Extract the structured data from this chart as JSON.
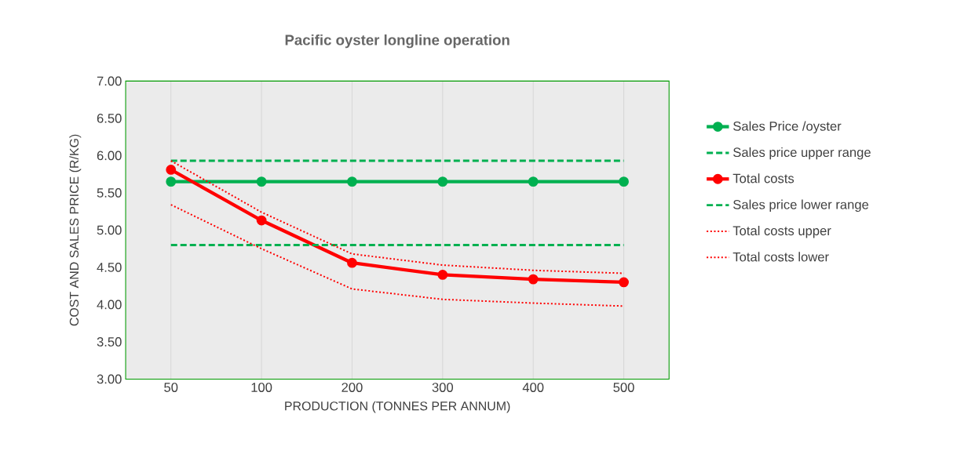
{
  "chart_data": {
    "type": "line",
    "title": "Pacific oyster longline operation",
    "xlabel": "PRODUCTION (TONNES PER ANNUM)",
    "ylabel": "COST AND SALES PRICE (R/KG)",
    "categories": [
      "50",
      "100",
      "200",
      "300",
      "400",
      "500"
    ],
    "series": [
      {
        "name": "Sales Price /oyster",
        "color": "#00b050",
        "line_style": "solid",
        "marker": "circle",
        "values": [
          5.65,
          5.65,
          5.65,
          5.65,
          5.65,
          5.65
        ]
      },
      {
        "name": "Sales price upper range",
        "color": "#00b050",
        "line_style": "dashed",
        "marker": "none",
        "values": [
          5.93,
          5.93,
          5.93,
          5.93,
          5.93,
          5.93
        ]
      },
      {
        "name": "Total costs",
        "color": "#ff0000",
        "line_style": "solid",
        "marker": "circle",
        "values": [
          5.81,
          5.13,
          4.56,
          4.4,
          4.34,
          4.3
        ]
      },
      {
        "name": "Sales price lower range",
        "color": "#00b050",
        "line_style": "dashed",
        "marker": "none",
        "values": [
          4.8,
          4.8,
          4.8,
          4.8,
          4.8,
          4.8
        ]
      },
      {
        "name": "Total costs upper",
        "color": "#ff0000",
        "line_style": "dotted",
        "marker": "none",
        "values": [
          5.93,
          5.24,
          4.68,
          4.53,
          4.46,
          4.42
        ]
      },
      {
        "name": "Total costs lower",
        "color": "#ff0000",
        "line_style": "dotted",
        "marker": "none",
        "values": [
          5.34,
          4.75,
          4.21,
          4.07,
          4.02,
          3.98
        ]
      }
    ],
    "ylim": [
      3.0,
      7.0
    ],
    "yticks": [
      {
        "value": 3,
        "label": "3.00"
      },
      {
        "value": 3.5,
        "label": "3.50"
      },
      {
        "value": 4,
        "label": "4.00"
      },
      {
        "value": 4.5,
        "label": "4.50"
      },
      {
        "value": 5,
        "label": "5.00"
      },
      {
        "value": 5.5,
        "label": "5.50"
      },
      {
        "value": 6,
        "label": "6.00"
      },
      {
        "value": 6.5,
        "label": "6.50"
      },
      {
        "value": 7,
        "label": "7.00"
      }
    ],
    "grid": "x",
    "legend": "right"
  }
}
